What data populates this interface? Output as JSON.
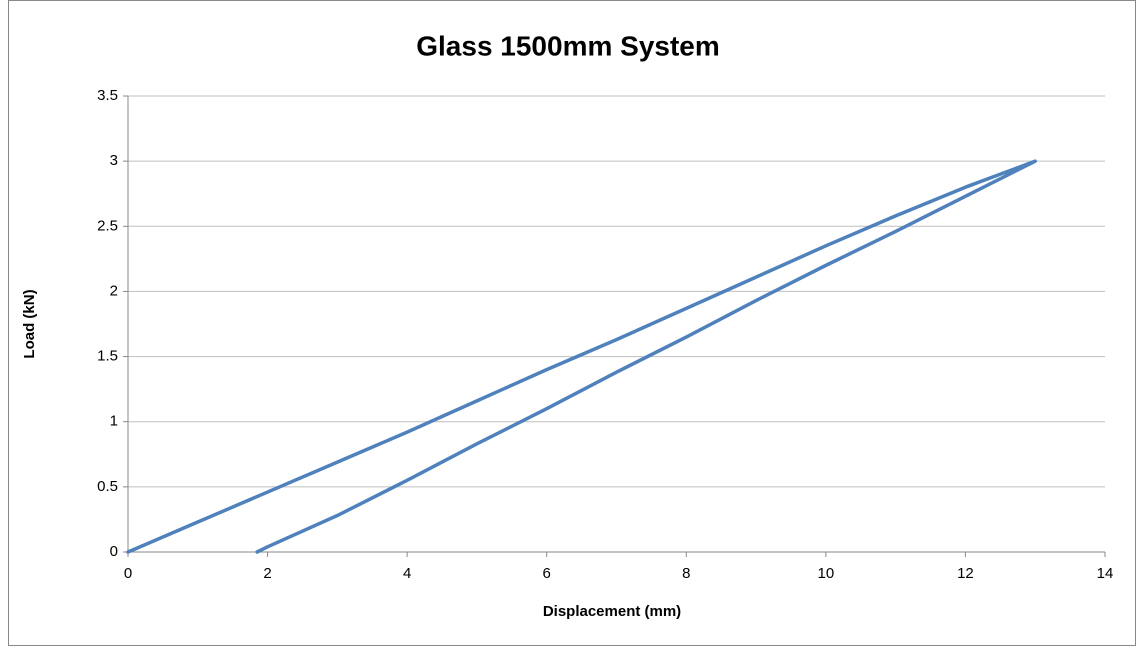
{
  "chart_data": {
    "type": "line",
    "title": "Glass 1500mm System",
    "x_label": "Displacement (mm)",
    "y_label": "Load (kN)",
    "x": [
      0,
      1,
      2,
      3,
      4,
      5,
      6,
      7,
      8,
      9,
      10,
      11,
      12,
      13,
      12,
      11,
      10,
      9,
      8,
      7,
      6,
      5,
      4,
      3,
      2,
      1.85
    ],
    "series": [
      {
        "color": "#4f81bd",
        "values": [
          0,
          0.23,
          0.46,
          0.69,
          0.92,
          1.16,
          1.4,
          1.63,
          1.87,
          2.11,
          2.35,
          2.58,
          2.8,
          3.0,
          2.73,
          2.46,
          2.2,
          1.93,
          1.65,
          1.38,
          1.1,
          0.83,
          0.55,
          0.28,
          0.04,
          0
        ]
      }
    ],
    "xlim": [
      0,
      14
    ],
    "xticks": [
      0,
      2,
      4,
      6,
      8,
      10,
      12,
      14
    ],
    "ylim": [
      0,
      3.5
    ],
    "yticks": [
      0,
      0.5,
      1,
      1.5,
      2,
      2.5,
      3,
      3.5
    ],
    "grid": true
  }
}
